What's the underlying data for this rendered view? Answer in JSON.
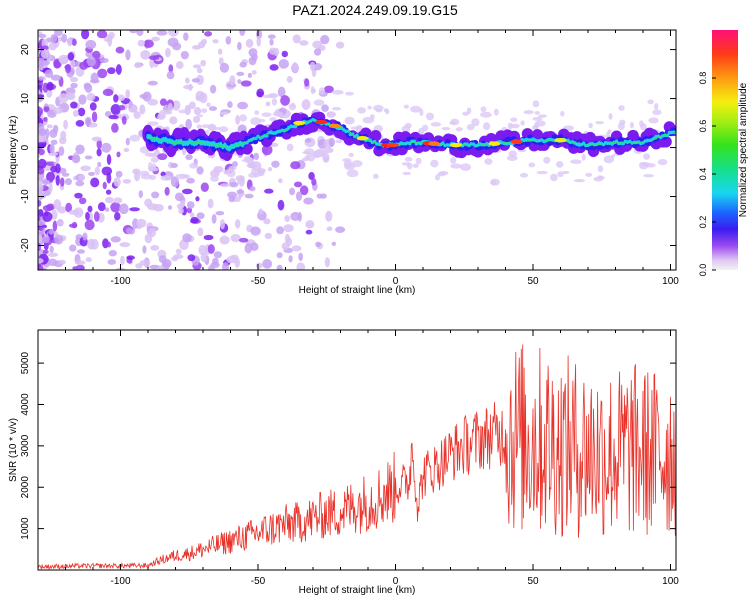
{
  "title": "PAZ1.2024.249.09.19.G15",
  "chart_data": [
    {
      "type": "heatmap",
      "title": "PAZ1.2024.249.09.19.G15",
      "xlabel": "Height of straight line (km)",
      "ylabel": "Frequency (Hz)",
      "xlim": [
        -130,
        102
      ],
      "ylim": [
        -25,
        24
      ],
      "xticks": [
        -100,
        -50,
        0,
        50,
        100
      ],
      "yticks": [
        -20,
        -10,
        0,
        10,
        20
      ],
      "colorbar": {
        "label": "Normalized spectral amplitude",
        "range": [
          0,
          1
        ],
        "ticks": [
          "0.0",
          "0.2",
          "0.4",
          "0.6",
          "0.8"
        ],
        "colormap": "rainbow"
      },
      "ridge": {
        "x": [
          -90,
          -80,
          -70,
          -60,
          -50,
          -45,
          -40,
          -35,
          -30,
          -25,
          -20,
          -15,
          -10,
          -5,
          0,
          5,
          10,
          20,
          30,
          40,
          50,
          60,
          70,
          80,
          90,
          100
        ],
        "freq": [
          2,
          1,
          1,
          0,
          2,
          3,
          3.5,
          5,
          5.5,
          5,
          4,
          2.5,
          1.5,
          0.5,
          0.5,
          1,
          1,
          0.5,
          0.5,
          1,
          1.5,
          1.5,
          0.5,
          1,
          1,
          3
        ]
      }
    },
    {
      "type": "line",
      "xlabel": "Height of straight line (km)",
      "ylabel": "SNR (10 * v/v)",
      "xlim": [
        -130,
        102
      ],
      "ylim": [
        0,
        5800
      ],
      "xticks": [
        -100,
        -50,
        0,
        50,
        100
      ],
      "yticks": [
        1000,
        2000,
        3000,
        4000,
        5000
      ],
      "color": "#e8322a",
      "series": [
        {
          "x": [
            -130,
            -120,
            -110,
            -100,
            -90,
            -85,
            -80,
            -75,
            -70,
            -65,
            -60,
            -55,
            -50,
            -45,
            -40,
            -35,
            -30,
            -25,
            -20,
            -15,
            -10,
            -5,
            0,
            5,
            6,
            7,
            8,
            10,
            15,
            20,
            25,
            30,
            35,
            40,
            45,
            50,
            55,
            60,
            65,
            70,
            75,
            80,
            85,
            90,
            95,
            100,
            102
          ],
          "values": [
            80,
            90,
            100,
            100,
            110,
            250,
            350,
            400,
            500,
            600,
            700,
            800,
            900,
            1000,
            1100,
            1150,
            1250,
            1350,
            1400,
            1550,
            1650,
            1800,
            2000,
            2150,
            3000,
            2400,
            1500,
            2300,
            2500,
            2800,
            3000,
            3150,
            3250,
            3300,
            3200,
            3150,
            3100,
            3000,
            2950,
            2900,
            2850,
            2800,
            2900,
            2850,
            2800,
            2900,
            3000
          ]
        }
      ]
    }
  ]
}
